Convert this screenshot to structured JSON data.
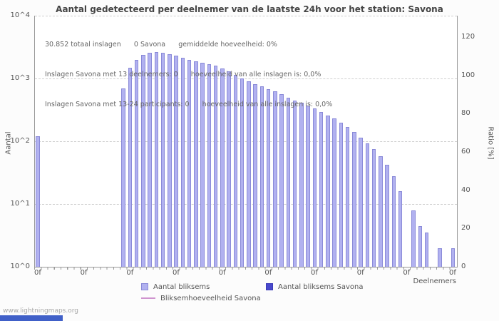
{
  "title": "Aantal gedetecteerd per deelnemer van de laatste 24h voor het station: Savona",
  "annotations": {
    "line1": "30.852 totaal inslagen      0 Savona      gemiddelde hoeveelheid: 0%",
    "line2": "Inslagen Savona met 13 deelnemers: 0      hoeveelheid van alle inslagen is: 0,0%",
    "line3": "Inslagen Savona met 13-24 participants: 0      hoeveelheid van alle inslagen is: 0,0%"
  },
  "axes": {
    "left_label": "Aantal",
    "right_label": "Ratio [%]",
    "x_label": "Deelnemers",
    "left_ticks": [
      "10^4",
      "10^3",
      "10^2",
      "10^1",
      "10^0"
    ],
    "right_ticks": [
      120,
      100,
      80,
      60,
      40,
      20,
      0
    ],
    "x_ticks": [
      "0f",
      "0f",
      "0f",
      "0f",
      "0f",
      "0f",
      "0f",
      "0f",
      "0f",
      "0f"
    ]
  },
  "legend": [
    {
      "label": "Aantal bliksems",
      "type": "box",
      "color": "#b1b1f0",
      "border": "#8a8ad8"
    },
    {
      "label": "Aantal bliksems Savona",
      "type": "box",
      "color": "#4949cc",
      "border": "#3a3ab8"
    },
    {
      "label": "Bliksemhoeveelheid Savona",
      "type": "line",
      "color": "#cf94cf"
    }
  ],
  "watermark": "www.lightningmaps.org",
  "colors": {
    "bar_fill": "#b1b1f0",
    "bar_border": "#8a8ad8",
    "savona_fill": "#4949cc",
    "ratio_line": "#cf94cf",
    "grid": "#cfcfcf",
    "axis": "#999999"
  },
  "chart_data": {
    "type": "bar",
    "y_scale": "log",
    "ylim": [
      1,
      10000
    ],
    "right_ylim": [
      0,
      130
    ],
    "grid": true,
    "title": "Aantal gedetecteerd per deelnemer van de laatste 24h voor het station: Savona",
    "xlabel": "Deelnemers",
    "ylabel": "Aantal",
    "y2label": "Ratio [%]",
    "totals": {
      "totaal_inslagen": "30.852",
      "savona_inslagen": 0,
      "gemiddelde_hoeveelheid_pct": 0
    },
    "series": [
      {
        "name": "Aantal bliksems",
        "values": [
          120,
          0,
          0,
          0,
          0,
          0,
          0,
          0,
          0,
          0,
          0,
          0,
          0,
          700,
          1500,
          2000,
          2350,
          2550,
          2650,
          2550,
          2450,
          2300,
          2150,
          2000,
          1900,
          1800,
          1700,
          1600,
          1450,
          1300,
          1150,
          1000,
          900,
          820,
          750,
          680,
          620,
          560,
          500,
          450,
          410,
          370,
          330,
          290,
          260,
          230,
          200,
          170,
          140,
          115,
          92,
          75,
          58,
          42,
          28,
          16,
          0,
          8,
          4.5,
          3.5,
          0,
          2,
          0,
          2
        ]
      },
      {
        "name": "Aantal bliksems Savona",
        "constant_value": 0
      },
      {
        "name": "Bliksemhoeveelheid Savona",
        "constant_value": 0
      }
    ]
  }
}
